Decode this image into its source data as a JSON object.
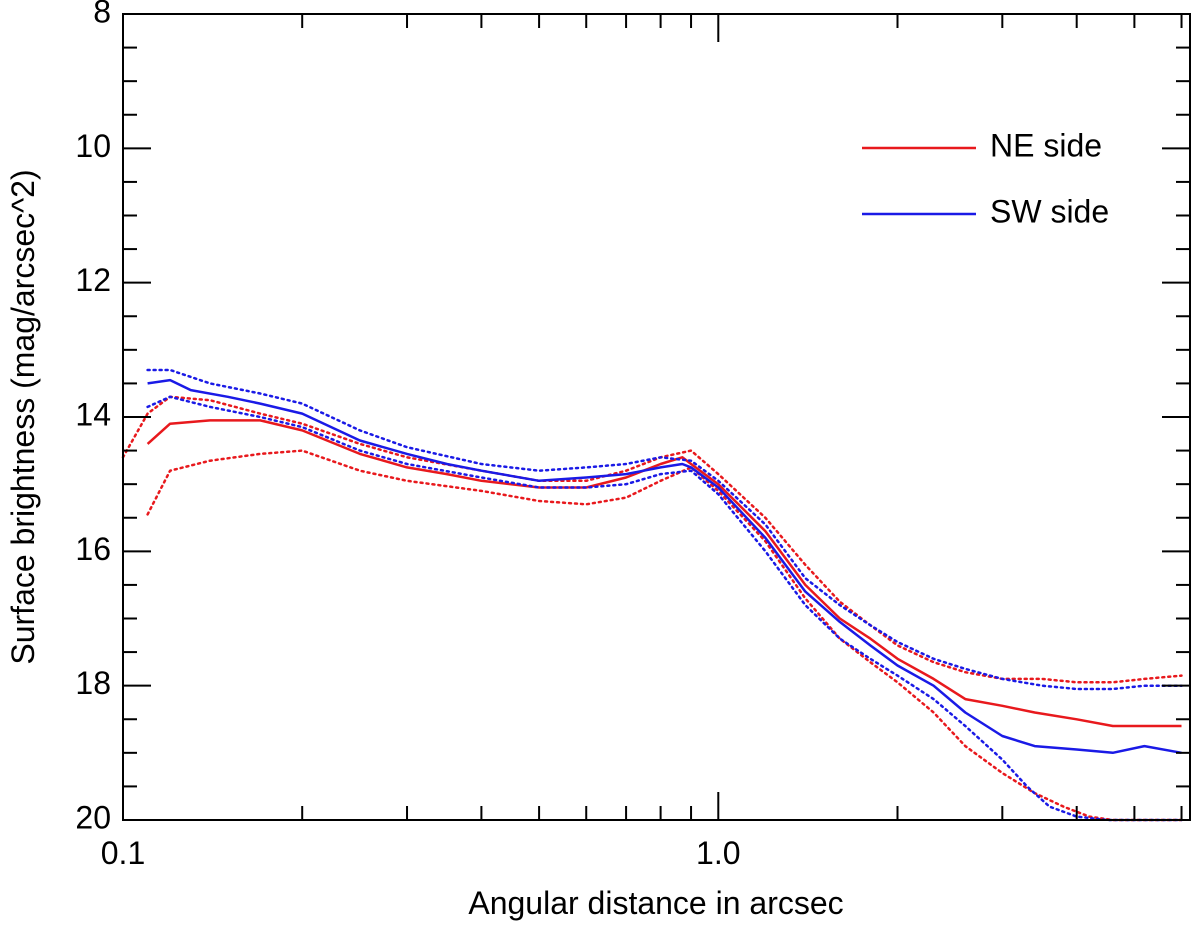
{
  "chart_data": {
    "type": "line",
    "title": "",
    "xlabel": "Angular distance in arcsec",
    "ylabel": "Surface brightness (mag/arcsec^2)",
    "xscale": "log",
    "xlim": [
      0.1,
      6.2
    ],
    "ylim": [
      20,
      8
    ],
    "y_inverted": true,
    "x_tick_labels": [
      {
        "value": 0.1,
        "label": "0.1"
      },
      {
        "value": 1.0,
        "label": "1.0"
      }
    ],
    "y_tick_labels": [
      "8",
      "10",
      "12",
      "14",
      "16",
      "18",
      "20"
    ],
    "legend": {
      "placement": "top-right",
      "entries": [
        {
          "label": "NE side",
          "color": "#e8191d"
        },
        {
          "label": "SW side",
          "color": "#1a1ae6"
        }
      ]
    },
    "series": [
      {
        "name": "NE side",
        "style": "solid",
        "color": "#e8191d",
        "x": [
          0.11,
          0.12,
          0.14,
          0.17,
          0.2,
          0.25,
          0.3,
          0.35,
          0.4,
          0.5,
          0.6,
          0.7,
          0.8,
          0.87,
          0.9,
          1.0,
          1.2,
          1.4,
          1.6,
          1.8,
          2.0,
          2.3,
          2.6,
          3.0,
          3.4,
          4.0,
          4.6,
          5.2,
          6.0
        ],
        "values": [
          14.4,
          14.1,
          14.05,
          14.05,
          14.2,
          14.55,
          14.75,
          14.85,
          14.95,
          15.05,
          15.05,
          14.9,
          14.7,
          14.6,
          14.7,
          15.0,
          15.7,
          16.5,
          17.0,
          17.3,
          17.6,
          17.9,
          18.2,
          18.3,
          18.4,
          18.5,
          18.6,
          18.6,
          18.6
        ]
      },
      {
        "name": "NE upper bound",
        "style": "dotted",
        "color": "#e8191d",
        "x": [
          0.1,
          0.11,
          0.12,
          0.14,
          0.17,
          0.2,
          0.25,
          0.3,
          0.4,
          0.5,
          0.6,
          0.7,
          0.8,
          0.9,
          1.0,
          1.2,
          1.4,
          1.6,
          1.8,
          2.0,
          2.3,
          2.6,
          3.0,
          3.5,
          4.0,
          4.6,
          5.2,
          6.0
        ],
        "values": [
          14.6,
          13.95,
          13.7,
          13.75,
          13.95,
          14.1,
          14.4,
          14.6,
          14.8,
          14.95,
          14.95,
          14.8,
          14.6,
          14.5,
          14.85,
          15.5,
          16.2,
          16.75,
          17.1,
          17.4,
          17.65,
          17.8,
          17.9,
          17.9,
          17.95,
          17.95,
          17.9,
          17.85
        ]
      },
      {
        "name": "NE lower bound",
        "style": "dotted",
        "color": "#e8191d",
        "x": [
          0.11,
          0.12,
          0.14,
          0.17,
          0.2,
          0.25,
          0.3,
          0.4,
          0.5,
          0.6,
          0.7,
          0.8,
          0.9,
          1.0,
          1.2,
          1.4,
          1.6,
          1.8,
          2.0,
          2.3,
          2.6,
          3.0,
          3.4,
          3.8,
          4.2,
          4.6,
          5.0,
          5.5,
          6.0
        ],
        "values": [
          15.45,
          14.8,
          14.65,
          14.55,
          14.5,
          14.8,
          14.95,
          15.1,
          15.25,
          15.3,
          15.2,
          14.95,
          14.75,
          15.1,
          15.85,
          16.7,
          17.3,
          17.65,
          17.95,
          18.4,
          18.9,
          19.3,
          19.6,
          19.8,
          19.95,
          20.0,
          20.0,
          20.0,
          20.0
        ]
      },
      {
        "name": "SW side",
        "style": "solid",
        "color": "#1a1ae6",
        "x": [
          0.11,
          0.12,
          0.13,
          0.15,
          0.17,
          0.2,
          0.25,
          0.3,
          0.35,
          0.4,
          0.5,
          0.6,
          0.7,
          0.8,
          0.87,
          0.9,
          1.0,
          1.2,
          1.4,
          1.6,
          1.8,
          2.0,
          2.3,
          2.6,
          3.0,
          3.4,
          4.0,
          4.6,
          5.2,
          6.0
        ],
        "values": [
          13.5,
          13.45,
          13.6,
          13.7,
          13.8,
          13.95,
          14.35,
          14.55,
          14.7,
          14.8,
          14.95,
          14.9,
          14.85,
          14.75,
          14.7,
          14.75,
          15.05,
          15.8,
          16.6,
          17.05,
          17.4,
          17.7,
          18.0,
          18.4,
          18.75,
          18.9,
          18.95,
          19.0,
          18.9,
          19.0
        ]
      },
      {
        "name": "SW upper bound",
        "style": "dotted",
        "color": "#1a1ae6",
        "x": [
          0.11,
          0.12,
          0.14,
          0.17,
          0.2,
          0.25,
          0.3,
          0.4,
          0.5,
          0.6,
          0.7,
          0.8,
          0.9,
          1.0,
          1.2,
          1.4,
          1.6,
          1.8,
          2.0,
          2.3,
          2.6,
          3.0,
          3.5,
          4.0,
          4.6,
          5.2,
          6.0
        ],
        "values": [
          13.3,
          13.3,
          13.5,
          13.65,
          13.8,
          14.2,
          14.45,
          14.7,
          14.8,
          14.75,
          14.7,
          14.6,
          14.65,
          14.95,
          15.6,
          16.4,
          16.8,
          17.1,
          17.35,
          17.6,
          17.75,
          17.9,
          18.0,
          18.05,
          18.05,
          18.0,
          18.0
        ]
      },
      {
        "name": "SW lower bound",
        "style": "dotted",
        "color": "#1a1ae6",
        "x": [
          0.11,
          0.12,
          0.14,
          0.17,
          0.2,
          0.25,
          0.3,
          0.4,
          0.5,
          0.6,
          0.7,
          0.8,
          0.9,
          1.0,
          1.2,
          1.4,
          1.6,
          1.8,
          2.0,
          2.3,
          2.6,
          3.0,
          3.3,
          3.6,
          4.0,
          4.5,
          5.0,
          5.5,
          6.0
        ],
        "values": [
          13.85,
          13.7,
          13.85,
          14.0,
          14.15,
          14.5,
          14.7,
          14.9,
          15.05,
          15.05,
          15.0,
          14.85,
          14.8,
          15.15,
          16.0,
          16.8,
          17.3,
          17.6,
          17.85,
          18.2,
          18.6,
          19.1,
          19.5,
          19.8,
          19.95,
          20.0,
          20.0,
          20.0,
          20.0
        ]
      }
    ]
  }
}
